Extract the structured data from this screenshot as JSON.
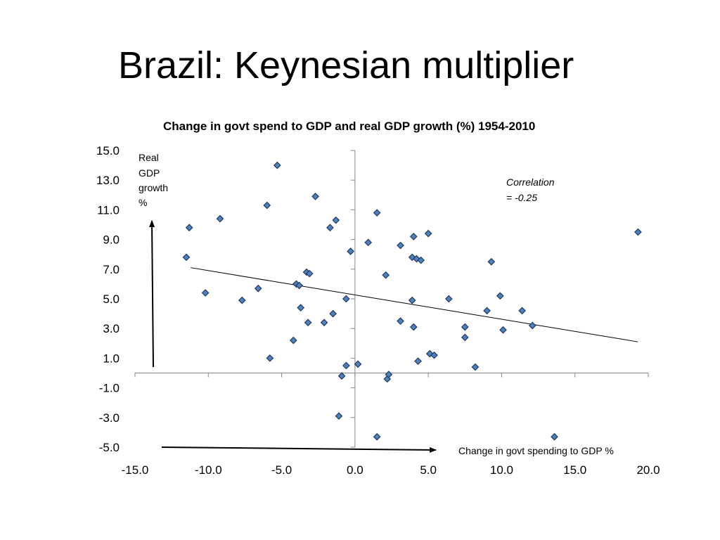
{
  "slide": {
    "title": "Brazil: Keynesian multiplier"
  },
  "chart_data": {
    "type": "scatter",
    "title": "Change in govt spend to GDP and real GDP growth (%) 1954-2010",
    "xlabel": "Change in govt spending to GDP %",
    "ylabel_lines": [
      "Real",
      "GDP",
      "growth",
      "%"
    ],
    "annotation_lines": [
      "Correlation",
      "= -0.25"
    ],
    "xlim": [
      -15,
      20
    ],
    "ylim": [
      -5,
      15
    ],
    "x_ticks": [
      "-15.0",
      "-10.0",
      "-5.0",
      "0.0",
      "5.0",
      "10.0",
      "15.0",
      "20.0"
    ],
    "y_ticks": [
      "15.0",
      "13.0",
      "11.0",
      "9.0",
      "7.0",
      "5.0",
      "3.0",
      "1.0",
      "-1.0",
      "-3.0",
      "-5.0"
    ],
    "grid": false,
    "marker": "diamond",
    "marker_color": "#4f81bd",
    "trendline": {
      "x": [
        -11.2,
        19.3
      ],
      "y": [
        7.1,
        2.1
      ]
    },
    "points": [
      {
        "x": -11.5,
        "y": 7.8
      },
      {
        "x": -11.3,
        "y": 9.8
      },
      {
        "x": -10.2,
        "y": 5.4
      },
      {
        "x": -9.2,
        "y": 10.4
      },
      {
        "x": -7.7,
        "y": 4.9
      },
      {
        "x": -6.6,
        "y": 5.7
      },
      {
        "x": -5.8,
        "y": 1.0
      },
      {
        "x": -6.0,
        "y": 11.3
      },
      {
        "x": -5.3,
        "y": 14.0
      },
      {
        "x": -4.2,
        "y": 2.2
      },
      {
        "x": -4.0,
        "y": 6.0
      },
      {
        "x": -3.8,
        "y": 5.9
      },
      {
        "x": -3.7,
        "y": 4.4
      },
      {
        "x": -3.3,
        "y": 6.8
      },
      {
        "x": -3.2,
        "y": 3.4
      },
      {
        "x": -3.1,
        "y": 6.7
      },
      {
        "x": -2.7,
        "y": 11.9
      },
      {
        "x": -2.1,
        "y": 3.4
      },
      {
        "x": -1.7,
        "y": 9.8
      },
      {
        "x": -1.5,
        "y": 4.0
      },
      {
        "x": -1.3,
        "y": 10.3
      },
      {
        "x": -1.1,
        "y": -2.9
      },
      {
        "x": -0.9,
        "y": -0.2
      },
      {
        "x": -0.6,
        "y": 5.0
      },
      {
        "x": -0.6,
        "y": 0.5
      },
      {
        "x": -0.3,
        "y": 8.2
      },
      {
        "x": 0.2,
        "y": 0.6
      },
      {
        "x": 0.9,
        "y": 8.8
      },
      {
        "x": 1.5,
        "y": 10.8
      },
      {
        "x": 1.5,
        "y": -4.3
      },
      {
        "x": 2.1,
        "y": 6.6
      },
      {
        "x": 2.2,
        "y": -0.4
      },
      {
        "x": 2.3,
        "y": -0.1
      },
      {
        "x": 3.1,
        "y": 8.6
      },
      {
        "x": 3.1,
        "y": 3.5
      },
      {
        "x": 3.9,
        "y": 7.8
      },
      {
        "x": 3.9,
        "y": 4.9
      },
      {
        "x": 4.0,
        "y": 9.2
      },
      {
        "x": 4.0,
        "y": 3.1
      },
      {
        "x": 4.2,
        "y": 7.7
      },
      {
        "x": 4.3,
        "y": 0.8
      },
      {
        "x": 4.5,
        "y": 7.6
      },
      {
        "x": 5.0,
        "y": 9.4
      },
      {
        "x": 5.1,
        "y": 1.3
      },
      {
        "x": 5.4,
        "y": 1.2
      },
      {
        "x": 6.4,
        "y": 5.0
      },
      {
        "x": 7.5,
        "y": 3.1
      },
      {
        "x": 7.5,
        "y": 2.4
      },
      {
        "x": 8.2,
        "y": 0.4
      },
      {
        "x": 9.0,
        "y": 4.2
      },
      {
        "x": 9.3,
        "y": 7.5
      },
      {
        "x": 9.9,
        "y": 5.2
      },
      {
        "x": 10.1,
        "y": 2.9
      },
      {
        "x": 11.4,
        "y": 4.2
      },
      {
        "x": 12.1,
        "y": 3.2
      },
      {
        "x": 13.6,
        "y": -4.3
      },
      {
        "x": 19.3,
        "y": 9.5
      }
    ]
  }
}
